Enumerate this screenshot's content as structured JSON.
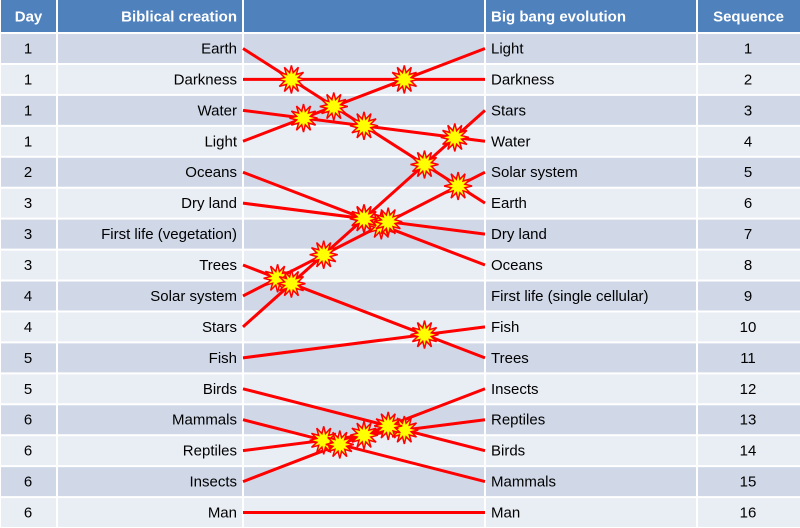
{
  "table": {
    "header": [
      "Day",
      "Biblical creation",
      "Big bang evolution",
      "Sequence"
    ],
    "rows": [
      [
        1,
        "Earth",
        "Light",
        1
      ],
      [
        1,
        "Darkness",
        "Darkness",
        2
      ],
      [
        1,
        "Water",
        "Stars",
        3
      ],
      [
        1,
        "Light",
        "Water",
        4
      ],
      [
        2,
        "Oceans",
        "Solar system",
        5
      ],
      [
        3,
        "Dry land",
        "Earth",
        6
      ],
      [
        3,
        "First life (vegetation)",
        "Dry land",
        7
      ],
      [
        3,
        "Trees",
        "Oceans",
        8
      ],
      [
        4,
        "Solar system",
        "First life (single cellular)",
        9
      ],
      [
        4,
        "Stars",
        "Fish",
        10
      ],
      [
        5,
        "Fish",
        "Trees",
        11
      ],
      [
        5,
        "Birds",
        "Insects",
        12
      ],
      [
        6,
        "Mammals",
        "Reptiles",
        13
      ],
      [
        6,
        "Reptiles",
        "Birds",
        14
      ],
      [
        6,
        "Insects",
        "Mammals",
        15
      ],
      [
        6,
        "Man",
        "Man",
        16
      ]
    ]
  }
}
